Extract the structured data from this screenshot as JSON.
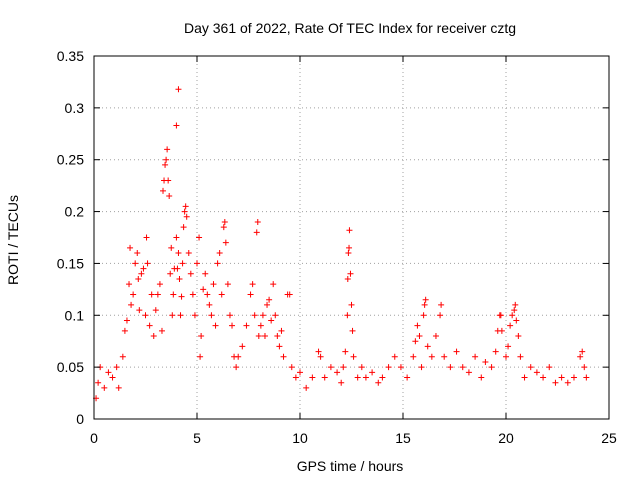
{
  "chart_data": {
    "type": "scatter",
    "title": "Day 361 of 2022, Rate Of TEC Index for receiver cztg",
    "xlabel": "GPS time / hours",
    "ylabel": "ROTI / TECUs",
    "xlim": [
      0,
      25
    ],
    "ylim": [
      0,
      0.35
    ],
    "xticks": [
      0,
      5,
      10,
      15,
      20,
      25
    ],
    "xtick_labels": [
      "0",
      "5",
      "10",
      "15",
      "20",
      "25"
    ],
    "yticks": [
      0,
      0.05,
      0.1,
      0.15,
      0.2,
      0.25,
      0.3,
      0.35
    ],
    "ytick_labels": [
      "0",
      "0.05",
      "0.1",
      "0.15",
      "0.2",
      "0.25",
      "0.3",
      "0.35"
    ],
    "grid": true,
    "marker": "+",
    "color": "#ff0000",
    "series": [
      {
        "points": [
          [
            0.1,
            0.02
          ],
          [
            0.2,
            0.035
          ],
          [
            0.3,
            0.05
          ],
          [
            0.5,
            0.03
          ],
          [
            0.7,
            0.045
          ],
          [
            0.9,
            0.04
          ],
          [
            1.1,
            0.05
          ],
          [
            1.2,
            0.03
          ],
          [
            1.4,
            0.06
          ],
          [
            1.5,
            0.085
          ],
          [
            1.6,
            0.095
          ],
          [
            1.7,
            0.13
          ],
          [
            1.75,
            0.165
          ],
          [
            1.8,
            0.11
          ],
          [
            1.9,
            0.12
          ],
          [
            2.0,
            0.15
          ],
          [
            2.1,
            0.16
          ],
          [
            2.15,
            0.135
          ],
          [
            2.2,
            0.105
          ],
          [
            2.3,
            0.14
          ],
          [
            2.4,
            0.145
          ],
          [
            2.5,
            0.1
          ],
          [
            2.55,
            0.175
          ],
          [
            2.6,
            0.15
          ],
          [
            2.7,
            0.09
          ],
          [
            2.8,
            0.12
          ],
          [
            2.9,
            0.08
          ],
          [
            3.0,
            0.105
          ],
          [
            3.1,
            0.12
          ],
          [
            3.2,
            0.13
          ],
          [
            3.3,
            0.085
          ],
          [
            3.35,
            0.22
          ],
          [
            3.4,
            0.23
          ],
          [
            3.45,
            0.245
          ],
          [
            3.5,
            0.25
          ],
          [
            3.55,
            0.26
          ],
          [
            3.6,
            0.23
          ],
          [
            3.65,
            0.215
          ],
          [
            3.7,
            0.14
          ],
          [
            3.75,
            0.165
          ],
          [
            3.8,
            0.1
          ],
          [
            3.85,
            0.12
          ],
          [
            3.9,
            0.145
          ],
          [
            4.0,
            0.175
          ],
          [
            4.05,
            0.145
          ],
          [
            4.1,
            0.16
          ],
          [
            4.15,
            0.135
          ],
          [
            4.2,
            0.1
          ],
          [
            4.25,
            0.118
          ],
          [
            4.3,
            0.15
          ],
          [
            4.35,
            0.185
          ],
          [
            4.4,
            0.2
          ],
          [
            4.45,
            0.205
          ],
          [
            4.5,
            0.195
          ],
          [
            4.6,
            0.16
          ],
          [
            4.7,
            0.14
          ],
          [
            4.8,
            0.12
          ],
          [
            4.9,
            0.1
          ],
          [
            5.0,
            0.15
          ],
          [
            5.1,
            0.175
          ],
          [
            5.15,
            0.06
          ],
          [
            5.2,
            0.08
          ],
          [
            5.3,
            0.125
          ],
          [
            5.4,
            0.14
          ],
          [
            5.5,
            0.12
          ],
          [
            5.6,
            0.11
          ],
          [
            5.7,
            0.1
          ],
          [
            5.8,
            0.13
          ],
          [
            5.9,
            0.09
          ],
          [
            6.0,
            0.15
          ],
          [
            6.1,
            0.16
          ],
          [
            6.2,
            0.12
          ],
          [
            6.3,
            0.185
          ],
          [
            6.35,
            0.19
          ],
          [
            6.4,
            0.17
          ],
          [
            6.5,
            0.13
          ],
          [
            6.6,
            0.1
          ],
          [
            6.7,
            0.09
          ],
          [
            6.8,
            0.06
          ],
          [
            6.9,
            0.05
          ],
          [
            7.0,
            0.06
          ],
          [
            7.2,
            0.07
          ],
          [
            7.4,
            0.09
          ],
          [
            7.6,
            0.12
          ],
          [
            7.7,
            0.13
          ],
          [
            7.8,
            0.1
          ],
          [
            7.9,
            0.18
          ],
          [
            7.95,
            0.19
          ],
          [
            8.0,
            0.08
          ],
          [
            8.1,
            0.09
          ],
          [
            8.2,
            0.1
          ],
          [
            8.3,
            0.08
          ],
          [
            8.4,
            0.11
          ],
          [
            8.5,
            0.115
          ],
          [
            8.6,
            0.095
          ],
          [
            8.7,
            0.13
          ],
          [
            8.8,
            0.1
          ],
          [
            8.9,
            0.08
          ],
          [
            9.0,
            0.07
          ],
          [
            9.1,
            0.085
          ],
          [
            9.2,
            0.06
          ],
          [
            9.4,
            0.12
          ],
          [
            9.5,
            0.12
          ],
          [
            9.6,
            0.05
          ],
          [
            9.8,
            0.04
          ],
          [
            10.0,
            0.045
          ],
          [
            10.3,
            0.03
          ],
          [
            10.6,
            0.04
          ],
          [
            10.9,
            0.065
          ],
          [
            11.0,
            0.06
          ],
          [
            11.2,
            0.04
          ],
          [
            11.5,
            0.05
          ],
          [
            11.8,
            0.045
          ],
          [
            12.0,
            0.035
          ],
          [
            12.1,
            0.05
          ],
          [
            12.2,
            0.065
          ],
          [
            12.3,
            0.1
          ],
          [
            12.32,
            0.135
          ],
          [
            12.35,
            0.16
          ],
          [
            12.38,
            0.165
          ],
          [
            12.4,
            0.182
          ],
          [
            12.45,
            0.14
          ],
          [
            12.5,
            0.11
          ],
          [
            12.55,
            0.085
          ],
          [
            12.6,
            0.06
          ],
          [
            12.8,
            0.04
          ],
          [
            13.0,
            0.05
          ],
          [
            13.2,
            0.04
          ],
          [
            13.5,
            0.045
          ],
          [
            13.8,
            0.035
          ],
          [
            14.0,
            0.04
          ],
          [
            14.3,
            0.05
          ],
          [
            14.6,
            0.06
          ],
          [
            14.9,
            0.05
          ],
          [
            15.2,
            0.04
          ],
          [
            15.5,
            0.06
          ],
          [
            15.6,
            0.075
          ],
          [
            15.7,
            0.09
          ],
          [
            15.8,
            0.08
          ],
          [
            15.9,
            0.05
          ],
          [
            16.0,
            0.1
          ],
          [
            16.05,
            0.11
          ],
          [
            16.1,
            0.115
          ],
          [
            16.2,
            0.07
          ],
          [
            16.4,
            0.06
          ],
          [
            16.6,
            0.08
          ],
          [
            16.8,
            0.1
          ],
          [
            16.85,
            0.11
          ],
          [
            17.0,
            0.06
          ],
          [
            17.3,
            0.05
          ],
          [
            17.6,
            0.065
          ],
          [
            17.9,
            0.05
          ],
          [
            18.2,
            0.045
          ],
          [
            18.5,
            0.06
          ],
          [
            18.8,
            0.04
          ],
          [
            19.0,
            0.055
          ],
          [
            19.3,
            0.05
          ],
          [
            19.5,
            0.065
          ],
          [
            19.6,
            0.085
          ],
          [
            19.7,
            0.1
          ],
          [
            19.75,
            0.1
          ],
          [
            19.8,
            0.085
          ],
          [
            20.0,
            0.06
          ],
          [
            20.1,
            0.07
          ],
          [
            20.2,
            0.09
          ],
          [
            20.3,
            0.1
          ],
          [
            20.4,
            0.105
          ],
          [
            20.45,
            0.11
          ],
          [
            20.5,
            0.095
          ],
          [
            20.6,
            0.08
          ],
          [
            20.7,
            0.06
          ],
          [
            20.9,
            0.04
          ],
          [
            21.2,
            0.05
          ],
          [
            21.5,
            0.045
          ],
          [
            21.8,
            0.04
          ],
          [
            22.1,
            0.05
          ],
          [
            22.4,
            0.035
          ],
          [
            22.7,
            0.04
          ],
          [
            23.0,
            0.035
          ],
          [
            23.3,
            0.04
          ],
          [
            23.6,
            0.06
          ],
          [
            23.7,
            0.065
          ],
          [
            23.8,
            0.05
          ],
          [
            23.9,
            0.04
          ],
          [
            4.0,
            0.283
          ],
          [
            4.1,
            0.318
          ]
        ]
      }
    ]
  }
}
